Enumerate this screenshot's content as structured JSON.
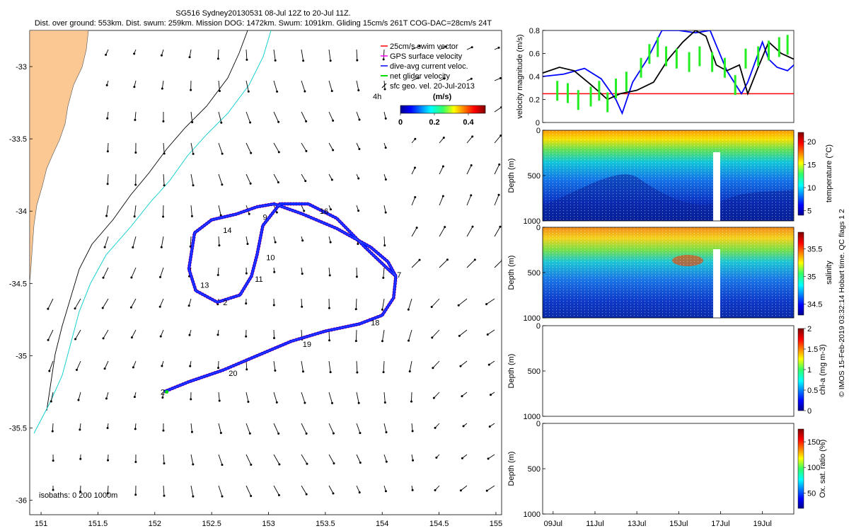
{
  "figure": {
    "title_line1": "SG516 Sydney20130531 08-Jul 12Z to 20-Jul 11Z.",
    "title_line2": "Dist. over ground: 553km. Dist. swum: 259km. Mission DOG: 1472km. Swum: 1091km. Gliding 15cm/s 261T COG-DAC=28cm/s 24T",
    "credit": "© IMOS 15-Feb-2019 03:32:14 Hobart time. QC flags 1  2"
  },
  "chart_data": [
    {
      "type": "line",
      "panel": "map",
      "xlim": [
        150.9,
        155.05
      ],
      "ylim": [
        -36.1,
        -32.75
      ],
      "xticks": [
        "151",
        "151.5",
        "152",
        "152.5",
        "153",
        "153.5",
        "154",
        "154.5",
        "155"
      ],
      "yticks": [
        "-33",
        "-33.5",
        "-34",
        "-34.5",
        "-35",
        "-35.5",
        "-36"
      ],
      "legend": {
        "placement": "top-right",
        "items": [
          {
            "label": "25cm/s swim vector",
            "color": "#ff0000"
          },
          {
            "label": "GPS surface velocity",
            "color": "#ff00ff"
          },
          {
            "label": "dive-avg current veloc.",
            "color": "#0000ff"
          },
          {
            "label": "net glider velocity",
            "color": "#00dd00"
          },
          {
            "label": "sfc geo. vel. 20-Jul-2013",
            "color": "#000000"
          }
        ]
      },
      "colorbar": {
        "title": "(m/s)",
        "ticks": [
          "0",
          "0.2",
          "0.4"
        ],
        "range": [
          0,
          0.5
        ]
      },
      "time_label": "4h",
      "isobath_label": "isobaths: 0   200   1000m",
      "track": {
        "lon": [
          152.08,
          152.3,
          152.6,
          152.9,
          153.2,
          153.5,
          153.8,
          154.0,
          154.1,
          154.12,
          154.05,
          153.9,
          153.6,
          153.3,
          153.05,
          152.9,
          152.72,
          152.5,
          152.35,
          152.3,
          152.36,
          152.55,
          152.75,
          152.85,
          152.9,
          152.95,
          153.1,
          153.35,
          153.6,
          153.85,
          154.05,
          154.12
        ],
        "lat": [
          -35.25,
          -35.18,
          -35.1,
          -35.0,
          -34.9,
          -34.83,
          -34.78,
          -34.72,
          -34.6,
          -34.45,
          -34.35,
          -34.25,
          -34.12,
          -34.02,
          -33.95,
          -33.97,
          -34.02,
          -34.06,
          -34.15,
          -34.4,
          -34.55,
          -34.63,
          -34.58,
          -34.45,
          -34.3,
          -34.1,
          -33.95,
          -33.95,
          -34.05,
          -34.25,
          -34.4,
          -34.45
        ],
        "labels": [
          {
            "text": "2",
            "lon": 152.05,
            "lat": -35.25
          },
          {
            "text": "20",
            "lon": 152.65,
            "lat": -35.12
          },
          {
            "text": "19",
            "lon": 153.3,
            "lat": -34.92
          },
          {
            "text": "18",
            "lon": 153.9,
            "lat": -34.77
          },
          {
            "text": "7",
            "lon": 154.13,
            "lat": -34.44
          },
          {
            "text": "16",
            "lon": 153.45,
            "lat": -34.0
          },
          {
            "text": "9",
            "lon": 152.95,
            "lat": -34.04
          },
          {
            "text": "14",
            "lon": 152.6,
            "lat": -34.13
          },
          {
            "text": "10",
            "lon": 152.98,
            "lat": -34.32
          },
          {
            "text": "11",
            "lon": 152.88,
            "lat": -34.47
          },
          {
            "text": "13",
            "lon": 152.4,
            "lat": -34.51
          },
          {
            "text": "2",
            "lon": 152.6,
            "lat": -34.63
          }
        ]
      }
    },
    {
      "type": "line",
      "panel": "velocity",
      "ylabel": "velocity magnitude (m/s)",
      "ylim": [
        0,
        0.8
      ],
      "yticks": [
        "0",
        "0.2",
        "0.4",
        "0.6",
        "0.8"
      ],
      "xlim_days": [
        8.5,
        20.5
      ],
      "reference_line": 0.25,
      "series": [
        {
          "color": "#0000ff",
          "x": [
            8.5,
            9.5,
            10.5,
            11.3,
            12.0,
            12.3,
            12.8,
            13.5,
            14.2,
            15.0,
            15.8,
            16.5,
            17.3,
            18.0,
            18.3,
            18.6,
            19.0,
            19.3,
            19.7,
            20.2,
            20.5
          ],
          "y": [
            0.4,
            0.42,
            0.47,
            0.38,
            0.2,
            0.08,
            0.35,
            0.55,
            0.8,
            0.8,
            0.78,
            0.8,
            0.45,
            0.25,
            0.35,
            0.5,
            0.7,
            0.55,
            0.48,
            0.45,
            0.5
          ]
        },
        {
          "color": "#000000",
          "x": [
            8.5,
            9.3,
            10.0,
            10.8,
            11.6,
            12.2,
            13.0,
            13.8,
            14.5,
            15.2,
            15.8,
            16.3,
            16.8,
            17.3,
            17.9,
            18.3,
            18.8,
            19.3,
            19.9,
            20.5
          ],
          "y": [
            0.43,
            0.48,
            0.45,
            0.33,
            0.2,
            0.25,
            0.28,
            0.35,
            0.55,
            0.7,
            0.8,
            0.75,
            0.5,
            0.45,
            0.5,
            0.25,
            0.48,
            0.7,
            0.6,
            0.55
          ]
        },
        {
          "color": "#22ee22",
          "x": [
            9.2,
            9.7,
            10.2,
            10.8,
            11.2,
            11.6,
            12.0,
            12.5,
            13.2,
            13.6,
            14.0,
            14.4,
            14.9,
            15.5,
            16.0,
            16.6,
            17.2,
            17.7,
            18.2,
            18.8,
            19.3,
            19.8,
            20.2
          ],
          "y": [
            0.3,
            0.28,
            0.22,
            0.25,
            0.3,
            0.2,
            0.32,
            0.38,
            0.5,
            0.62,
            0.68,
            0.6,
            0.58,
            0.55,
            0.6,
            0.55,
            0.5,
            0.35,
            0.58,
            0.6,
            0.65,
            0.68,
            0.7
          ]
        }
      ]
    },
    {
      "type": "heatmap",
      "panel": "temperature",
      "ylabel": "Depth (m)",
      "yticks": [
        "0",
        "500",
        "1000"
      ],
      "colorbar_label": "temperature (°C)",
      "colorbar_ticks": [
        "5",
        "10",
        "15",
        "20"
      ],
      "range": [
        4,
        22
      ]
    },
    {
      "type": "heatmap",
      "panel": "salinity",
      "ylabel": "Depth (m)",
      "yticks": [
        "0",
        "500",
        "1000"
      ],
      "colorbar_label": "salinity",
      "colorbar_ticks": [
        "34.5",
        "35",
        "35.5"
      ],
      "range": [
        34.3,
        35.8
      ]
    },
    {
      "type": "heatmap",
      "panel": "chlorophyll",
      "ylabel": "Depth (m)",
      "yticks": [
        "0",
        "500",
        "1000"
      ],
      "colorbar_label": "chl-a (mg m-3)",
      "colorbar_ticks": [
        "0",
        "0.5",
        "1",
        "1.5",
        "2"
      ],
      "range": [
        0,
        2
      ]
    },
    {
      "type": "heatmap",
      "panel": "oxygen",
      "ylabel": "Depth (m)",
      "yticks": [
        "0",
        "500",
        "1000"
      ],
      "colorbar_label": "Ox. sat. ratio (%)",
      "colorbar_ticks": [
        "50",
        "100",
        "150"
      ],
      "range": [
        20,
        175
      ],
      "xticks": [
        "09Jul",
        "11Jul",
        "13Jul",
        "15Jul",
        "17Jul",
        "19Jul"
      ]
    }
  ]
}
